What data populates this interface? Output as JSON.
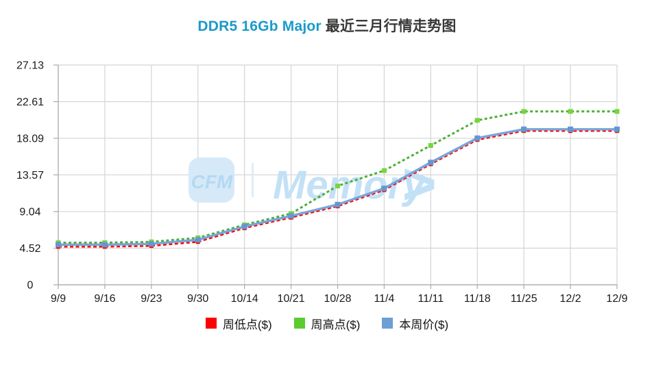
{
  "title": {
    "highlight": "DDR5 16Gb Major",
    "rest": "最近三月行情走势图",
    "highlight_color": "#1A9AC9",
    "text_color": "#383838"
  },
  "watermark": {
    "badge": "CFM",
    "text": "Memory",
    "arrow": ">",
    "badge_color": "#D6E9F8",
    "badge_text_color": "#B4D9F2",
    "text_color": "#C3E1F6",
    "separator_color": "#DDEDFA"
  },
  "colors": {
    "grid": "#D4D4D4",
    "axis": "#A8A8A8",
    "tick_text": "#1A1A1A",
    "background": "#FFFFFF"
  },
  "legend": {
    "items": [
      {
        "label": "周低点($)",
        "color": "#FF0000"
      },
      {
        "label": "周高点($)",
        "color": "#5BCB2F"
      },
      {
        "label": "本周价($)",
        "color": "#6D9ED4"
      }
    ]
  },
  "chart_data": {
    "type": "line",
    "title": "DDR5 16Gb Major 最近三月行情走势图",
    "xlabel": "",
    "ylabel": "",
    "grid": true,
    "legend_position": "bottom",
    "ylim": [
      0,
      27.13
    ],
    "yticks": [
      0,
      4.52,
      9.04,
      13.57,
      18.09,
      22.61,
      27.13
    ],
    "ytick_labels": [
      "0",
      "4.52",
      "9.04",
      "13.57",
      "18.09",
      "22.61",
      "27.13"
    ],
    "x": [
      "9/9",
      "9/16",
      "9/23",
      "9/30",
      "10/14",
      "10/21",
      "10/28",
      "11/4",
      "11/11",
      "11/18",
      "11/25",
      "12/2",
      "12/9"
    ],
    "series": [
      {
        "id": "week-low",
        "name": "周低点($)",
        "color": "#FF0000",
        "marker_color": "#FF0000",
        "style": "dashed",
        "dash": "5 3.5",
        "width": 2.5,
        "marker_size": 6,
        "values": [
          4.7,
          4.7,
          4.8,
          5.3,
          7.0,
          8.3,
          9.7,
          11.7,
          14.9,
          17.9,
          19.0,
          19.0,
          19.0
        ]
      },
      {
        "id": "week-high",
        "name": "周高点($)",
        "color": "#4CAF38",
        "marker_color": "#76D63C",
        "style": "dashed",
        "dash": "4 3.5",
        "width": 3,
        "marker_size": 7,
        "values": [
          5.2,
          5.2,
          5.3,
          5.8,
          7.4,
          8.8,
          12.2,
          14.1,
          17.2,
          20.3,
          21.4,
          21.4,
          21.4
        ]
      },
      {
        "id": "current-week",
        "name": "本周价($)",
        "color": "#79A4D8",
        "marker_color": "#6597CE",
        "style": "solid",
        "dash": "",
        "width": 3.5,
        "marker_size": 8,
        "values": [
          4.95,
          4.95,
          5.05,
          5.55,
          7.2,
          8.5,
          9.9,
          11.9,
          15.1,
          18.1,
          19.2,
          19.2,
          19.2
        ]
      }
    ]
  }
}
